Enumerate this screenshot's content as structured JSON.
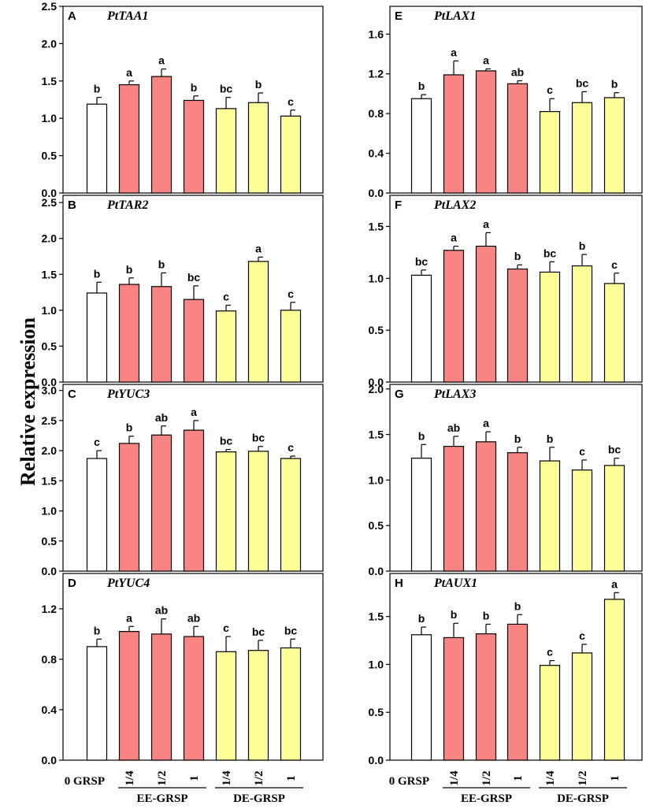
{
  "ylabel": "Relative expression",
  "colors": {
    "control": "#ffffff",
    "ee": "#f98583",
    "de": "#ffff99",
    "stroke": "#000000"
  },
  "categories": [
    "0 GRSP",
    "1/4",
    "1/2",
    "1",
    "1/4",
    "1/2",
    "1"
  ],
  "groups": [
    {
      "label": "EE-GRSP",
      "category_indices": [
        1,
        2,
        3
      ]
    },
    {
      "label": "DE-GRSP",
      "category_indices": [
        4,
        5,
        6
      ]
    }
  ],
  "chart_data": [
    {
      "panel": "A",
      "gene": "PtTAA1",
      "type": "bar",
      "ylim": [
        0,
        2.5
      ],
      "ticks": [
        "0.0",
        "0.5",
        "1.0",
        "1.5",
        "2.0",
        "2.5"
      ],
      "values": [
        1.19,
        1.45,
        1.56,
        1.24,
        1.13,
        1.21,
        1.03
      ],
      "errors": [
        0.09,
        0.05,
        0.1,
        0.06,
        0.15,
        0.13,
        0.08
      ],
      "letters": [
        "b",
        "a",
        "a",
        "b",
        "bc",
        "b",
        "c"
      ]
    },
    {
      "panel": "B",
      "gene": "PtTAR2",
      "type": "bar",
      "ylim": [
        0,
        2.6
      ],
      "ticks": [
        "0.0",
        "0.5",
        "1.0",
        "1.5",
        "2.0",
        "2.5"
      ],
      "values": [
        1.24,
        1.36,
        1.33,
        1.15,
        0.99,
        1.68,
        1.0
      ],
      "errors": [
        0.15,
        0.09,
        0.19,
        0.19,
        0.08,
        0.06,
        0.11
      ],
      "letters": [
        "b",
        "b",
        "b",
        "bc",
        "c",
        "a",
        "c"
      ]
    },
    {
      "panel": "C",
      "gene": "PtYUC3",
      "type": "bar",
      "ylim": [
        0,
        3.1
      ],
      "ticks": [
        "0.0",
        "0.5",
        "1.0",
        "1.5",
        "2.0",
        "2.5",
        "3.0"
      ],
      "values": [
        1.87,
        2.12,
        2.26,
        2.34,
        1.98,
        1.99,
        1.87
      ],
      "errors": [
        0.13,
        0.12,
        0.15,
        0.16,
        0.04,
        0.08,
        0.04
      ],
      "letters": [
        "c",
        "b",
        "ab",
        "a",
        "bc",
        "bc",
        "c"
      ]
    },
    {
      "panel": "D",
      "gene": "PtYUC4",
      "type": "bar",
      "ylim": [
        0,
        1.48
      ],
      "ticks": [
        "0.0",
        "0.4",
        "0.8",
        "1.2"
      ],
      "values": [
        0.9,
        1.02,
        1.0,
        0.98,
        0.86,
        0.87,
        0.89
      ],
      "errors": [
        0.06,
        0.04,
        0.12,
        0.08,
        0.12,
        0.08,
        0.07
      ],
      "letters": [
        "b",
        "a",
        "ab",
        "ab",
        "c",
        "bc",
        "bc"
      ]
    },
    {
      "panel": "E",
      "gene": "PtLAX1",
      "type": "bar",
      "ylim": [
        0,
        1.88
      ],
      "ticks": [
        "0.0",
        "0.4",
        "0.8",
        "1.2",
        "1.6"
      ],
      "values": [
        0.95,
        1.19,
        1.23,
        1.1,
        0.82,
        0.91,
        0.96
      ],
      "errors": [
        0.04,
        0.14,
        0.02,
        0.03,
        0.13,
        0.11,
        0.05
      ],
      "letters": [
        "b",
        "a",
        "a",
        "ab",
        "c",
        "bc",
        "b"
      ]
    },
    {
      "panel": "F",
      "gene": "PtLAX2",
      "type": "bar",
      "ylim": [
        0,
        1.8
      ],
      "ticks": [
        "0.0",
        "0.5",
        "1.0",
        "1.5"
      ],
      "values": [
        1.03,
        1.27,
        1.31,
        1.09,
        1.06,
        1.12,
        0.95
      ],
      "errors": [
        0.05,
        0.04,
        0.13,
        0.04,
        0.1,
        0.11,
        0.1
      ],
      "letters": [
        "bc",
        "a",
        "a",
        "b",
        "bc",
        "b",
        "c"
      ]
    },
    {
      "panel": "G",
      "gene": "PtLAX3",
      "type": "bar",
      "ylim": [
        0,
        2.05
      ],
      "ticks": [
        "0.0",
        "0.5",
        "1.0",
        "1.5",
        "2.0"
      ],
      "values": [
        1.24,
        1.37,
        1.42,
        1.3,
        1.21,
        1.11,
        1.16
      ],
      "errors": [
        0.15,
        0.11,
        0.11,
        0.06,
        0.15,
        0.11,
        0.08
      ],
      "letters": [
        "b",
        "ab",
        "a",
        "b",
        "b",
        "c",
        "bc"
      ]
    },
    {
      "panel": "H",
      "gene": "PtAUX1",
      "type": "bar",
      "ylim": [
        0,
        1.95
      ],
      "ticks": [
        "0.0",
        "0.5",
        "1.0",
        "1.5"
      ],
      "values": [
        1.31,
        1.28,
        1.32,
        1.42,
        0.99,
        1.12,
        1.68
      ],
      "errors": [
        0.08,
        0.15,
        0.1,
        0.1,
        0.05,
        0.09,
        0.07
      ],
      "letters": [
        "b",
        "b",
        "b",
        "b",
        "c",
        "c",
        "a"
      ]
    }
  ]
}
